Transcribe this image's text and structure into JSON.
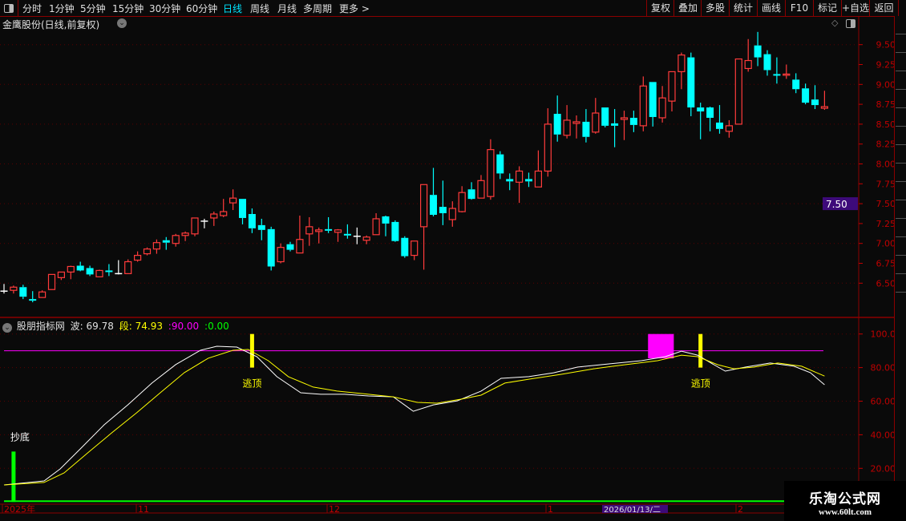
{
  "topbar": {
    "periods": [
      "分时",
      "1分钟",
      "5分钟",
      "15分钟",
      "30分钟",
      "60分钟",
      "日线",
      "周线",
      "月线",
      "多周期",
      "更多 >"
    ],
    "active_period": "日线",
    "buttons": [
      "复权",
      "叠加",
      "多股",
      "统计",
      "画线",
      "F10",
      "标记",
      "+自选",
      "返回"
    ]
  },
  "chart": {
    "title": "金鹰股份(日线,前复权)",
    "icons": [
      "chevron-down-icon",
      "diamond-icon",
      "panel-toggle-icon"
    ]
  },
  "colors": {
    "up": "#ff3b3b",
    "down": "#00ffff",
    "flat": "#ffffff",
    "axis": "#c00000",
    "highlight": "#3d0a7a",
    "wave": "#ffffff",
    "segment": "#ffff00",
    "level": "#ff00ff",
    "zero": "#00ff00"
  },
  "price_axis": {
    "ticks": [
      "9.50",
      "9.25",
      "9.00",
      "8.75",
      "8.50",
      "8.25",
      "8.00",
      "7.75",
      "7.50",
      "7.25",
      "7.00",
      "6.75",
      "6.50"
    ],
    "cursor_value": "7.50"
  },
  "indicator": {
    "name": "股朋指标网",
    "wave_label": "波:",
    "wave_value": "69.78",
    "segment_label": "段:",
    "segment_value": "74.93",
    "level_value": ":90.00",
    "zero_value": ":0.00",
    "ticks": [
      "100.0",
      "80.00",
      "60.00",
      "40.00",
      "20.00"
    ],
    "signal_bottom": "抄底",
    "signal_top": "逃顶"
  },
  "date_axis": {
    "labels": [
      "2025年",
      "11",
      "12",
      "1",
      "2"
    ],
    "cursor_date": "2026/01/13/二"
  },
  "watermark": {
    "name": "乐淘公式网",
    "url": "www.60lt.com"
  },
  "chart_data": [
    {
      "type": "candlestick",
      "ylim": [
        6.25,
        9.7
      ],
      "ohlc": [
        [
          6.4,
          6.49,
          6.37,
          6.4
        ],
        [
          6.41,
          6.47,
          6.37,
          6.45
        ],
        [
          6.45,
          6.48,
          6.3,
          6.33
        ],
        [
          6.3,
          6.4,
          6.26,
          6.28
        ],
        [
          6.32,
          6.41,
          6.32,
          6.39
        ],
        [
          6.42,
          6.61,
          6.42,
          6.61
        ],
        [
          6.57,
          6.64,
          6.54,
          6.64
        ],
        [
          6.64,
          6.72,
          6.55,
          6.71
        ],
        [
          6.72,
          6.77,
          6.65,
          6.66
        ],
        [
          6.69,
          6.72,
          6.59,
          6.61
        ],
        [
          6.58,
          6.67,
          6.58,
          6.66
        ],
        [
          6.66,
          6.74,
          6.59,
          6.64
        ],
        [
          6.62,
          6.79,
          6.61,
          6.62
        ],
        [
          6.62,
          6.8,
          6.62,
          6.77
        ],
        [
          6.79,
          6.9,
          6.77,
          6.85
        ],
        [
          6.87,
          6.95,
          6.85,
          6.93
        ],
        [
          6.93,
          7.05,
          6.87,
          7.01
        ],
        [
          7.04,
          7.08,
          6.92,
          7.01
        ],
        [
          7.0,
          7.12,
          6.96,
          7.1
        ],
        [
          7.1,
          7.15,
          7.03,
          7.13
        ],
        [
          7.12,
          7.32,
          7.09,
          7.32
        ],
        [
          7.28,
          7.31,
          7.19,
          7.28
        ],
        [
          7.32,
          7.4,
          7.22,
          7.37
        ],
        [
          7.35,
          7.56,
          7.33,
          7.4
        ],
        [
          7.51,
          7.68,
          7.42,
          7.57
        ],
        [
          7.56,
          7.56,
          7.24,
          7.32
        ],
        [
          7.37,
          7.44,
          7.13,
          7.19
        ],
        [
          7.23,
          7.31,
          7.04,
          7.17
        ],
        [
          7.18,
          7.21,
          6.66,
          6.71
        ],
        [
          6.77,
          7.0,
          6.75,
          6.95
        ],
        [
          6.99,
          7.02,
          6.9,
          6.92
        ],
        [
          6.88,
          7.35,
          6.88,
          7.05
        ],
        [
          7.12,
          7.33,
          6.97,
          7.21
        ],
        [
          7.15,
          7.2,
          7.0,
          7.17
        ],
        [
          7.18,
          7.33,
          7.13,
          7.16
        ],
        [
          7.14,
          7.18,
          7.02,
          7.17
        ],
        [
          7.12,
          7.24,
          7.06,
          7.1
        ],
        [
          7.09,
          7.2,
          6.99,
          7.09
        ],
        [
          7.04,
          7.1,
          6.99,
          7.08
        ],
        [
          7.11,
          7.38,
          7.11,
          7.31
        ],
        [
          7.34,
          7.35,
          7.09,
          7.25
        ],
        [
          7.27,
          7.29,
          7.02,
          7.03
        ],
        [
          7.07,
          7.09,
          6.82,
          6.84
        ],
        [
          6.85,
          7.03,
          6.79,
          7.03
        ],
        [
          7.21,
          7.74,
          6.67,
          7.74
        ],
        [
          7.61,
          7.95,
          7.34,
          7.36
        ],
        [
          7.46,
          7.79,
          7.23,
          7.38
        ],
        [
          7.3,
          7.53,
          7.21,
          7.44
        ],
        [
          7.4,
          7.72,
          7.39,
          7.64
        ],
        [
          7.68,
          7.77,
          7.55,
          7.56
        ],
        [
          7.57,
          7.86,
          7.57,
          7.79
        ],
        [
          7.59,
          8.31,
          7.55,
          8.18
        ],
        [
          8.12,
          8.16,
          7.81,
          7.88
        ],
        [
          7.81,
          7.88,
          7.67,
          7.78
        ],
        [
          7.77,
          7.97,
          7.51,
          7.91
        ],
        [
          7.81,
          7.89,
          7.71,
          7.78
        ],
        [
          7.71,
          8.17,
          7.71,
          7.91
        ],
        [
          7.91,
          8.7,
          7.84,
          8.5
        ],
        [
          8.63,
          8.86,
          8.28,
          8.37
        ],
        [
          8.36,
          8.74,
          8.32,
          8.55
        ],
        [
          8.51,
          8.61,
          8.32,
          8.53
        ],
        [
          8.53,
          8.69,
          8.27,
          8.34
        ],
        [
          8.4,
          8.83,
          8.38,
          8.64
        ],
        [
          8.71,
          8.71,
          8.46,
          8.48
        ],
        [
          8.51,
          8.69,
          8.21,
          8.48
        ],
        [
          8.56,
          8.67,
          8.3,
          8.58
        ],
        [
          8.58,
          8.67,
          8.4,
          8.49
        ],
        [
          8.48,
          9.1,
          8.41,
          8.98
        ],
        [
          9.03,
          9.03,
          8.47,
          8.59
        ],
        [
          8.58,
          8.98,
          8.52,
          8.83
        ],
        [
          8.79,
          9.16,
          8.66,
          9.16
        ],
        [
          9.16,
          9.4,
          8.94,
          9.37
        ],
        [
          9.34,
          9.4,
          8.6,
          8.71
        ],
        [
          8.71,
          8.77,
          8.31,
          8.66
        ],
        [
          8.71,
          8.72,
          8.41,
          8.58
        ],
        [
          8.52,
          8.74,
          8.38,
          8.44
        ],
        [
          8.41,
          8.55,
          8.33,
          8.48
        ],
        [
          8.5,
          9.32,
          8.5,
          9.32
        ],
        [
          9.2,
          9.57,
          9.16,
          9.3
        ],
        [
          9.49,
          9.66,
          9.23,
          9.34
        ],
        [
          9.38,
          9.43,
          9.11,
          9.18
        ],
        [
          9.13,
          9.34,
          9.01,
          9.12
        ],
        [
          9.12,
          9.25,
          9.07,
          9.13
        ],
        [
          9.06,
          9.14,
          8.89,
          8.94
        ],
        [
          8.95,
          9.01,
          8.75,
          8.77
        ],
        [
          8.81,
          8.99,
          8.69,
          8.74
        ],
        [
          8.7,
          8.92,
          8.68,
          8.72
        ]
      ],
      "grid": "dotted every 0.50"
    },
    {
      "type": "line",
      "ylim": [
        0,
        105
      ],
      "series": [
        {
          "name": "波",
          "points": [
            [
              0,
              10.1
            ],
            [
              4.2,
              12.5
            ],
            [
              5.9,
              19.7
            ],
            [
              8,
              31.6
            ],
            [
              10.5,
              45.9
            ],
            [
              13,
              57.9
            ],
            [
              15.5,
              70.8
            ],
            [
              18,
              81.8
            ],
            [
              20.6,
              90.3
            ],
            [
              22.3,
              92.7
            ],
            [
              24.4,
              92.2
            ],
            [
              26.5,
              86.5
            ],
            [
              28.6,
              74.6
            ],
            [
              31.1,
              65.0
            ],
            [
              33.2,
              64.1
            ],
            [
              35.7,
              64.1
            ],
            [
              38.2,
              63.1
            ],
            [
              40.8,
              62.6
            ],
            [
              42.9,
              54.0
            ],
            [
              45,
              57.8
            ],
            [
              47.5,
              60.2
            ],
            [
              50,
              66.0
            ],
            [
              52.1,
              73.6
            ],
            [
              55,
              74.6
            ],
            [
              57.6,
              76.9
            ],
            [
              60.1,
              80.3
            ],
            [
              63.4,
              82.2
            ],
            [
              66.8,
              84.1
            ],
            [
              69.3,
              86.5
            ],
            [
              71,
              89.8
            ],
            [
              72.7,
              87.4
            ],
            [
              74.4,
              81.7
            ],
            [
              75.6,
              77.9
            ],
            [
              77.7,
              80.3
            ],
            [
              80.3,
              82.7
            ],
            [
              82.8,
              80.8
            ],
            [
              84.5,
              77.0
            ],
            [
              86,
              69.78
            ]
          ]
        },
        {
          "name": "段",
          "points": [
            [
              0,
              10.1
            ],
            [
              4.2,
              11.6
            ],
            [
              6.3,
              17.3
            ],
            [
              8.8,
              29.3
            ],
            [
              11.3,
              41.2
            ],
            [
              13.9,
              53.1
            ],
            [
              16.4,
              65.1
            ],
            [
              18.9,
              77.0
            ],
            [
              21.4,
              85.6
            ],
            [
              24,
              90.3
            ],
            [
              25.6,
              90.8
            ],
            [
              27.7,
              84.1
            ],
            [
              29.8,
              74.6
            ],
            [
              32.4,
              68.4
            ],
            [
              34.9,
              66.0
            ],
            [
              38.2,
              64.1
            ],
            [
              40.8,
              62.6
            ],
            [
              43.3,
              59.3
            ],
            [
              45.4,
              58.8
            ],
            [
              47.9,
              61.2
            ],
            [
              50,
              63.6
            ],
            [
              52.5,
              70.8
            ],
            [
              55,
              73.1
            ],
            [
              58.4,
              76.0
            ],
            [
              61.8,
              79.3
            ],
            [
              65.1,
              81.7
            ],
            [
              68.5,
              84.1
            ],
            [
              71,
              87.4
            ],
            [
              72.7,
              86.5
            ],
            [
              74.8,
              81.7
            ],
            [
              76.5,
              79.3
            ],
            [
              78.6,
              80.3
            ],
            [
              81.1,
              82.7
            ],
            [
              83.6,
              80.8
            ],
            [
              86,
              74.93
            ]
          ]
        }
      ],
      "reference_lines": [
        90,
        0
      ],
      "signals": [
        {
          "type": "抄底",
          "index": 1,
          "range": [
            0,
            30
          ]
        },
        {
          "type": "逃顶",
          "index": 26,
          "range": [
            80,
            100
          ]
        },
        {
          "type": "逃顶",
          "index": 73,
          "range": [
            80,
            100
          ]
        },
        {
          "type": "block",
          "index_range": [
            67.5,
            70.2
          ],
          "range": [
            85.5,
            100
          ]
        }
      ]
    }
  ]
}
